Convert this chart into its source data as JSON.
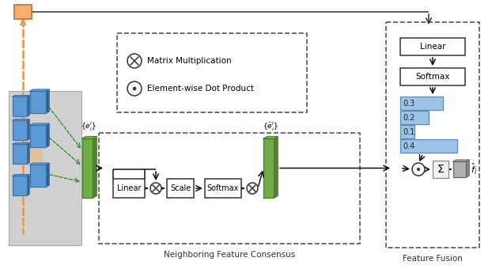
{
  "fig_width": 6.22,
  "fig_height": 3.4,
  "dpi": 100,
  "bg_color": "#ffffff",
  "orange_node_color": "#f5b070",
  "orange_dashed_color": "#e8944a",
  "gray_bg_color": "#d0d0d0",
  "blue_block_color": "#5b9bd5",
  "blue_block_edge": "#4472a8",
  "green_block_color": "#70ad47",
  "green_block_edge": "#507e33",
  "light_blue_bar_color": "#9dc3e6",
  "light_blue_bar_edge": "#5b8db8",
  "bar_values": [
    0.3,
    0.2,
    0.1,
    0.4
  ],
  "label_nfc": "Neighboring Feature Consensus",
  "label_ff": "Feature Fusion",
  "arrow_color": "#111111"
}
